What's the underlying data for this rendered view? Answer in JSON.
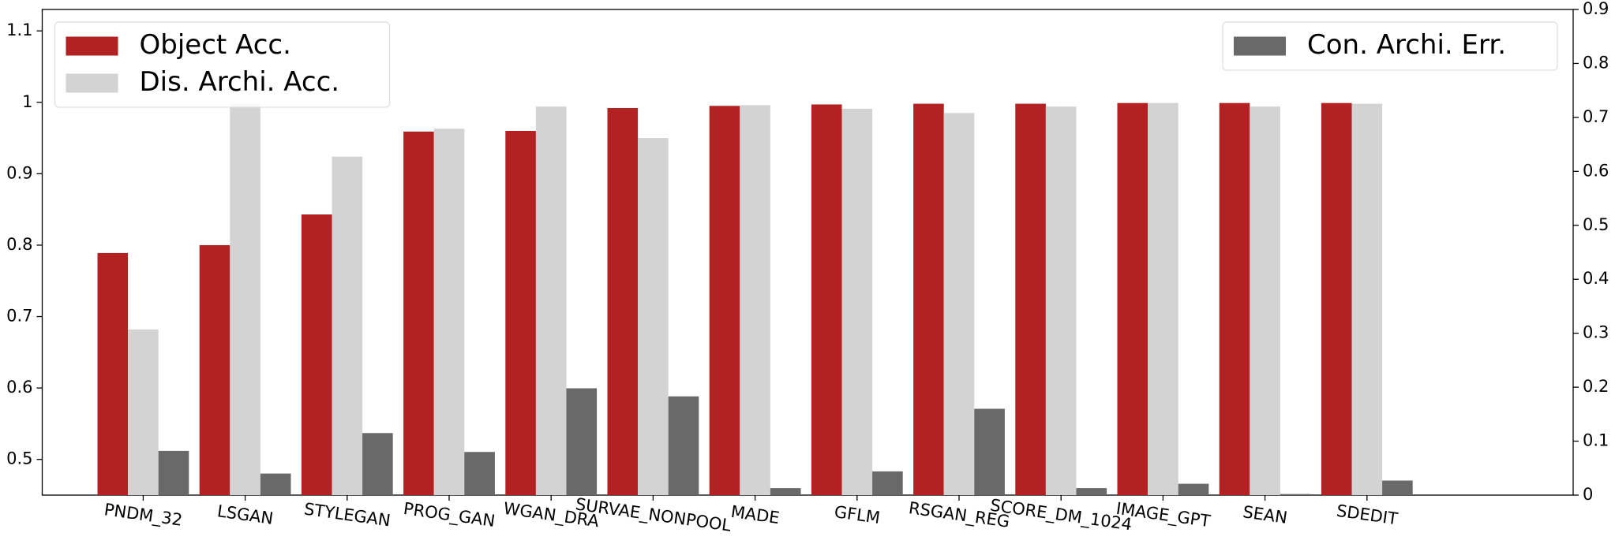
{
  "chart_data": {
    "type": "bar",
    "categories": [
      "PNDM_32",
      "LSGAN",
      "STYLEGAN",
      "PROG_GAN",
      "WGAN_DRA",
      "SURVAE_NONPOOL",
      "MADE",
      "GFLM",
      "RSGAN_REG",
      "SCORE_DM_1024",
      "IMAGE_GPT",
      "SEAN",
      "SDEDIT"
    ],
    "series": [
      {
        "name": "Object Acc.",
        "color": "#b22222",
        "values": [
          0.789,
          0.8,
          0.843,
          0.959,
          0.96,
          0.992,
          0.995,
          0.997,
          0.998,
          0.998,
          0.999,
          0.999,
          0.999
        ]
      },
      {
        "name": "Dis. Archi. Acc.",
        "color": "#d3d3d3",
        "values": [
          0.682,
          0.998,
          0.924,
          0.963,
          0.994,
          0.95,
          0.996,
          0.991,
          0.985,
          0.994,
          0.999,
          0.994,
          0.998
        ]
      },
      {
        "name": "Con. Archi. Err.",
        "color": "#696969",
        "axis": "y2",
        "values": [
          0.082,
          0.04,
          0.115,
          0.08,
          0.198,
          0.183,
          0.013,
          0.044,
          0.16,
          0.013,
          0.021,
          0.002,
          0.027
        ]
      }
    ],
    "ylim": [
      0.45,
      1.13
    ],
    "yticks": [
      0.5,
      0.6,
      0.7,
      0.8,
      0.9,
      1.0,
      1.1
    ],
    "y2lim": [
      0,
      0.9
    ],
    "y2ticks": [
      0.0,
      0.1,
      0.2,
      0.3,
      0.4,
      0.5,
      0.6,
      0.7,
      0.8,
      0.9
    ],
    "legend_loc": "upper left",
    "legend2_loc": "upper right",
    "grid": false
  }
}
